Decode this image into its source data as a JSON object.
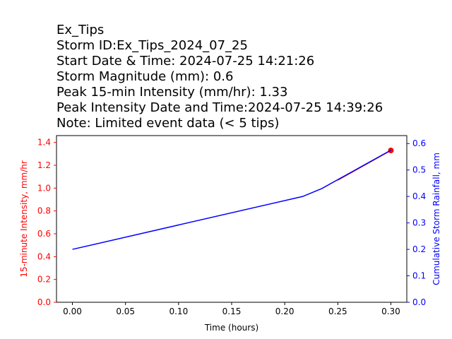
{
  "title_lines": [
    "Ex_Tips",
    "Storm ID:Ex_Tips_2024_07_25",
    "Start Date & Time: 2024-07-25 14:21:26",
    "Storm Magnitude (mm): 0.6",
    "Peak 15-min Intensity (mm/hr): 1.33",
    "Peak Intensity Date and Time:2024-07-25 14:39:26",
    "Note: Limited event data (< 5 tips)"
  ],
  "chart_data": {
    "type": "line",
    "xlabel": "Time (hours)",
    "ylabel_left": "15-minute Intensity, mm/hr",
    "ylabel_right": "Cumulative Storm Rainfall, mm",
    "xlim": [
      -0.015,
      0.315
    ],
    "ylim_left": [
      0,
      1.46
    ],
    "ylim_right": [
      0,
      0.63
    ],
    "x_ticks": [
      "0.00",
      "0.05",
      "0.10",
      "0.15",
      "0.20",
      "0.25",
      "0.30"
    ],
    "y_left_ticks": [
      "0.0",
      "0.2",
      "0.4",
      "0.6",
      "0.8",
      "1.0",
      "1.2",
      "1.4"
    ],
    "y_right_ticks": [
      "0.0",
      "0.1",
      "0.2",
      "0.3",
      "0.4",
      "0.5",
      "0.6"
    ],
    "grid": false,
    "series": [
      {
        "axis": "left",
        "color": "#ff0000",
        "marker_last": true,
        "x": [
          0.25,
          0.3
        ],
        "y": [
          1.07,
          1.33
        ]
      },
      {
        "axis": "right",
        "color": "#0000ff",
        "x": [
          0.0,
          0.217,
          0.235,
          0.3
        ],
        "y": [
          0.2,
          0.4,
          0.43,
          0.575
        ]
      }
    ],
    "colors": {
      "left_axis": "#ff0000",
      "right_axis": "#0000ff",
      "frame": "#000000"
    }
  }
}
